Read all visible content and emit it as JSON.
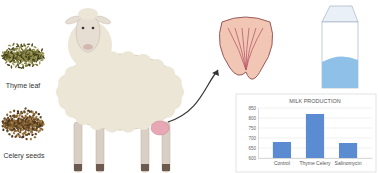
{
  "labels": {
    "thyme": "Thyme leaf",
    "celery": "Celery seeds"
  },
  "chart_data": {
    "type": "bar",
    "title": "MILK PRODUCTION",
    "categories": [
      "Control",
      "Thyme Celery",
      "Salinomycin"
    ],
    "values": [
      680,
      820,
      675
    ],
    "color": "#5b8bd0",
    "ylim": [
      600,
      850
    ],
    "yticks": [
      600,
      650,
      700,
      750,
      800,
      850
    ],
    "grid": true
  }
}
